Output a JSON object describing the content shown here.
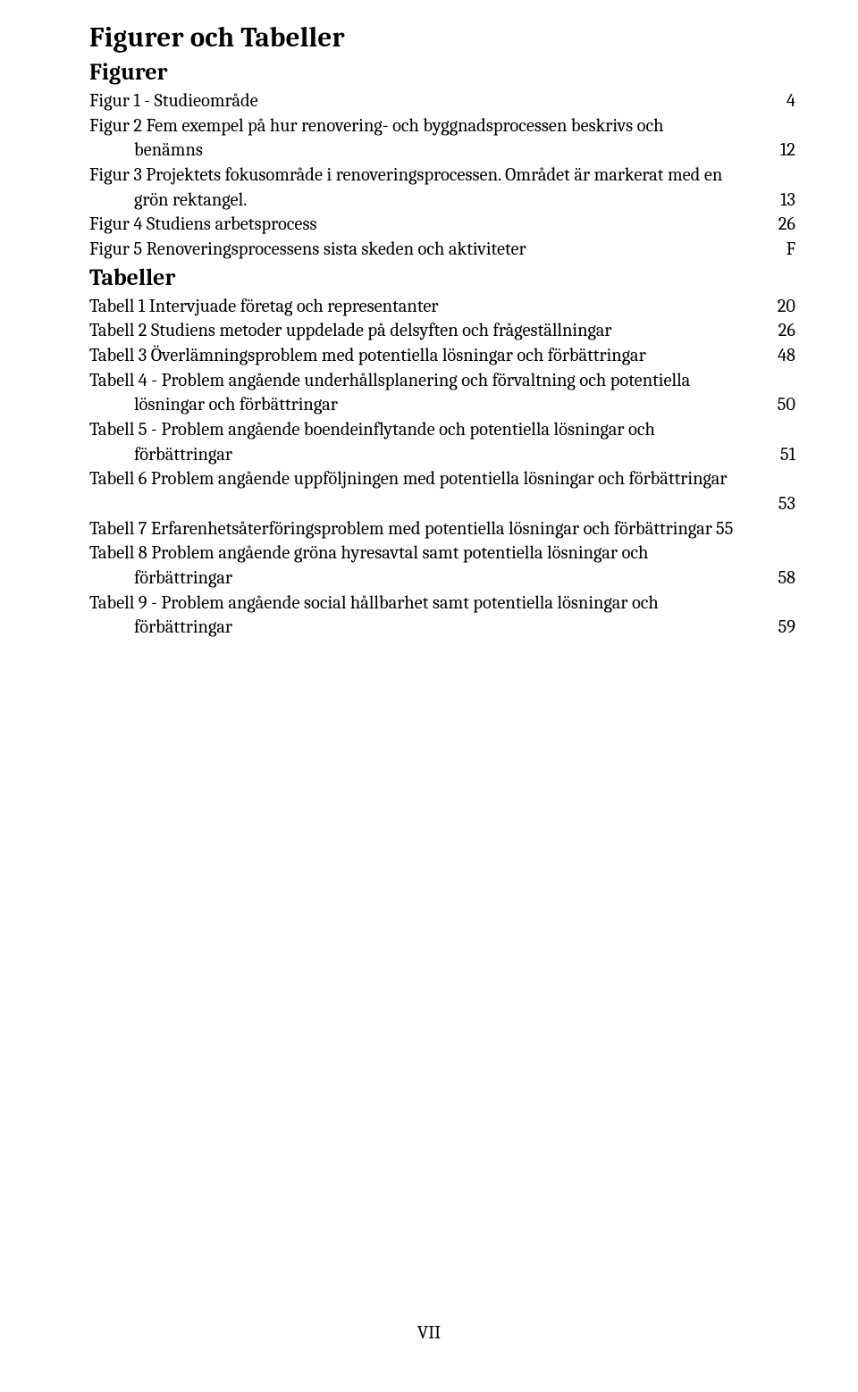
{
  "heading_main": "Figurer och Tabeller",
  "heading_figurer": "Figurer",
  "heading_tabeller": "Tabeller",
  "figurer": [
    {
      "label": "Figur 1 - Studieområde",
      "page": "4",
      "wrap": null,
      "indent": false
    },
    {
      "label": "Figur 2 Fem exempel på hur renovering- och byggnadsprocessen beskrivs och",
      "wrap": "benämns",
      "page": "12",
      "indent": true
    },
    {
      "label": "Figur 3 Projektets fokusområde i renoveringsprocessen. Området är markerat med en",
      "wrap": "grön rektangel.",
      "page": "13",
      "indent": true
    },
    {
      "label": "Figur 4 Studiens arbetsprocess",
      "page": "26",
      "wrap": null,
      "indent": false
    },
    {
      "label": "Figur 5 Renoveringsprocessens sista skeden och aktiviteter",
      "page": "F",
      "wrap": null,
      "indent": false
    }
  ],
  "tabeller": [
    {
      "label": "Tabell 1 Intervjuade företag och representanter",
      "page": "20",
      "wrap": null,
      "indent": false
    },
    {
      "label": "Tabell 2 Studiens metoder uppdelade på delsyften och frågeställningar",
      "page": "26",
      "wrap": null,
      "indent": false
    },
    {
      "label": "Tabell 3 Överlämningsproblem med potentiella lösningar och förbättringar",
      "page": "48",
      "wrap": null,
      "indent": false
    },
    {
      "label": "Tabell 4 - Problem angående underhållsplanering och förvaltning och potentiella",
      "wrap": "lösningar och förbättringar",
      "page": "50",
      "indent": true
    },
    {
      "label": "Tabell 5 - Problem angående boendeinflytande och potentiella lösningar och",
      "wrap": "förbättringar",
      "page": "51",
      "indent": true
    },
    {
      "label": "Tabell 6 Problem angående uppföljningen med potentiella lösningar och förbättringar",
      "wrap": "",
      "page": "53",
      "indent": true
    },
    {
      "label": "Tabell 7 Erfarenhetsåterföringsproblem med potentiella lösningar och förbättringar",
      "page": "55",
      "wrap": null,
      "indent": false,
      "noleader": true
    },
    {
      "label": "Tabell 8 Problem angående gröna hyresavtal samt potentiella lösningar och",
      "wrap": "förbättringar",
      "page": "58",
      "indent": true
    },
    {
      "label": "Tabell 9 - Problem angående social hållbarhet samt potentiella lösningar och",
      "wrap": "förbättringar",
      "page": "59",
      "indent": true
    }
  ],
  "page_number": "VII"
}
